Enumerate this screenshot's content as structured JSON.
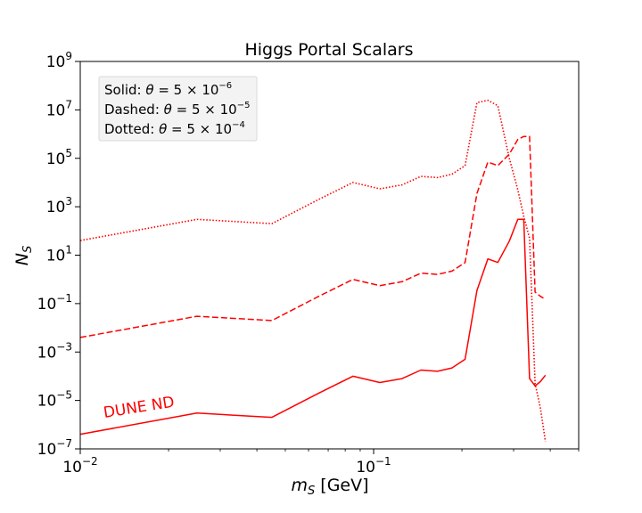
{
  "chart_data": {
    "type": "line",
    "title": "Higgs Portal Scalars",
    "xlabel_main": "m",
    "xlabel_sub": "S",
    "xlabel_unit": "[GeV]",
    "ylabel_main": "N",
    "ylabel_sub": "S",
    "xscale": "log",
    "yscale": "log",
    "xlim": [
      0.01,
      0.5
    ],
    "ylim": [
      1e-07,
      1000000000.0
    ],
    "color": "#ff0000",
    "x_ticks": [
      {
        "value": 0.01,
        "base": "10",
        "exp": "−2"
      },
      {
        "value": 0.1,
        "base": "10",
        "exp": "−1"
      }
    ],
    "y_ticks": [
      {
        "value": 1e-07,
        "base": "10",
        "exp": "−7"
      },
      {
        "value": 1e-05,
        "base": "10",
        "exp": "−5"
      },
      {
        "value": 0.001,
        "base": "10",
        "exp": "−3"
      },
      {
        "value": 0.1,
        "base": "10",
        "exp": "−1"
      },
      {
        "value": 10.0,
        "base": "10",
        "exp": "1"
      },
      {
        "value": 1000.0,
        "base": "10",
        "exp": "3"
      },
      {
        "value": 100000.0,
        "base": "10",
        "exp": "5"
      },
      {
        "value": 10000000.0,
        "base": "10",
        "exp": "7"
      },
      {
        "value": 1000000000.0,
        "base": "10",
        "exp": "9"
      }
    ],
    "legend": {
      "placement": "top-left",
      "entries": [
        {
          "label": "Solid:",
          "theta": "θ",
          "rhs": " = 5 × 10",
          "exp": "−6"
        },
        {
          "label": "Dashed:",
          "theta": "θ",
          "rhs": " = 5 × 10",
          "exp": "−5"
        },
        {
          "label": "Dotted:",
          "theta": "θ",
          "rhs": " = 5 × 10",
          "exp": "−4"
        }
      ]
    },
    "annotation": "DUNE ND",
    "series": [
      {
        "style": "solid",
        "x": [
          0.01,
          0.025,
          0.045,
          0.065,
          0.085,
          0.105,
          0.125,
          0.145,
          0.165,
          0.185,
          0.205,
          0.225,
          0.245,
          0.265,
          0.29,
          0.31,
          0.325,
          0.34,
          0.355,
          0.37,
          0.385
        ],
        "y": [
          4e-07,
          3e-06,
          2e-06,
          2e-05,
          0.0001,
          5.5e-05,
          8e-05,
          0.00018,
          0.00016,
          0.00022,
          0.0005,
          0.35,
          7,
          5,
          38,
          300,
          300,
          8e-05,
          4e-05,
          6e-05,
          0.00011
        ]
      },
      {
        "style": "dashed",
        "x": [
          0.01,
          0.025,
          0.045,
          0.065,
          0.085,
          0.105,
          0.125,
          0.145,
          0.165,
          0.185,
          0.205,
          0.225,
          0.245,
          0.265,
          0.29,
          0.31,
          0.325,
          0.34,
          0.355,
          0.37,
          0.385
        ],
        "y": [
          0.004,
          0.03,
          0.02,
          0.2,
          1,
          0.55,
          0.8,
          1.8,
          1.6,
          2.2,
          5,
          3500,
          70000,
          50000,
          150000,
          600000,
          800000,
          800000,
          0.3,
          0.2,
          0.15
        ]
      },
      {
        "style": "dotted",
        "x": [
          0.01,
          0.025,
          0.045,
          0.065,
          0.085,
          0.105,
          0.125,
          0.145,
          0.165,
          0.185,
          0.205,
          0.225,
          0.245,
          0.265,
          0.29,
          0.31,
          0.325,
          0.34,
          0.355,
          0.37,
          0.385
        ],
        "y": [
          40,
          300,
          200,
          2000,
          10000,
          5500,
          8000,
          18000,
          16000,
          22000,
          50000,
          20000000,
          25000000,
          15000000,
          100000,
          5000,
          400,
          50,
          5e-05,
          5e-06,
          2e-07
        ]
      }
    ]
  }
}
